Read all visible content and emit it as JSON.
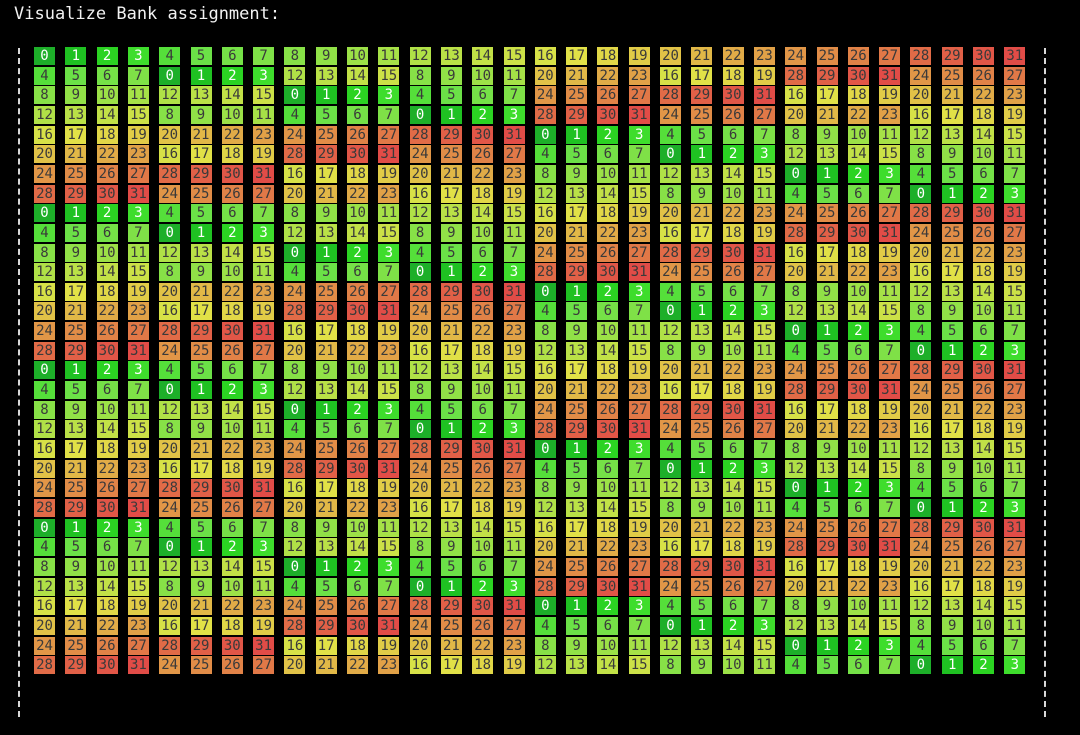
{
  "title": "Visualize Bank assignment:",
  "colors": {
    "background": "#000000",
    "title_text": "#f2f2f2",
    "cell_text": "#3a3a3a",
    "cell_text_low": "#ffffff",
    "border": "#d8d8d8"
  },
  "grid": {
    "rows": [
      [
        0,
        1,
        2,
        3,
        4,
        5,
        6,
        7,
        8,
        9,
        10,
        11,
        12,
        13,
        14,
        15,
        16,
        17,
        18,
        19,
        20,
        21,
        22,
        23,
        24,
        25,
        26,
        27,
        28,
        29,
        30,
        31
      ],
      [
        4,
        5,
        6,
        7,
        0,
        1,
        2,
        3,
        12,
        13,
        14,
        15,
        8,
        9,
        10,
        11,
        20,
        21,
        22,
        23,
        16,
        17,
        18,
        19,
        28,
        29,
        30,
        31,
        24,
        25,
        26,
        27
      ],
      [
        8,
        9,
        10,
        11,
        12,
        13,
        14,
        15,
        0,
        1,
        2,
        3,
        4,
        5,
        6,
        7,
        24,
        25,
        26,
        27,
        28,
        29,
        30,
        31,
        16,
        17,
        18,
        19,
        20,
        21,
        22,
        23
      ],
      [
        12,
        13,
        14,
        15,
        8,
        9,
        10,
        11,
        4,
        5,
        6,
        7,
        0,
        1,
        2,
        3,
        28,
        29,
        30,
        31,
        24,
        25,
        26,
        27,
        20,
        21,
        22,
        23,
        16,
        17,
        18,
        19
      ],
      [
        16,
        17,
        18,
        19,
        20,
        21,
        22,
        23,
        24,
        25,
        26,
        27,
        28,
        29,
        30,
        31,
        0,
        1,
        2,
        3,
        4,
        5,
        6,
        7,
        8,
        9,
        10,
        11,
        12,
        13,
        14,
        15
      ],
      [
        20,
        21,
        22,
        23,
        16,
        17,
        18,
        19,
        28,
        29,
        30,
        31,
        24,
        25,
        26,
        27,
        4,
        5,
        6,
        7,
        0,
        1,
        2,
        3,
        12,
        13,
        14,
        15,
        8,
        9,
        10,
        11
      ],
      [
        24,
        25,
        26,
        27,
        28,
        29,
        30,
        31,
        16,
        17,
        18,
        19,
        20,
        21,
        22,
        23,
        8,
        9,
        10,
        11,
        12,
        13,
        14,
        15,
        0,
        1,
        2,
        3,
        4,
        5,
        6,
        7
      ],
      [
        28,
        29,
        30,
        31,
        24,
        25,
        26,
        27,
        20,
        21,
        22,
        23,
        16,
        17,
        18,
        19,
        12,
        13,
        14,
        15,
        8,
        9,
        10,
        11,
        4,
        5,
        6,
        7,
        0,
        1,
        2,
        3
      ],
      [
        0,
        1,
        2,
        3,
        4,
        5,
        6,
        7,
        8,
        9,
        10,
        11,
        12,
        13,
        14,
        15,
        16,
        17,
        18,
        19,
        20,
        21,
        22,
        23,
        24,
        25,
        26,
        27,
        28,
        29,
        30,
        31
      ],
      [
        4,
        5,
        6,
        7,
        0,
        1,
        2,
        3,
        12,
        13,
        14,
        15,
        8,
        9,
        10,
        11,
        20,
        21,
        22,
        23,
        16,
        17,
        18,
        19,
        28,
        29,
        30,
        31,
        24,
        25,
        26,
        27
      ],
      [
        8,
        9,
        10,
        11,
        12,
        13,
        14,
        15,
        0,
        1,
        2,
        3,
        4,
        5,
        6,
        7,
        24,
        25,
        26,
        27,
        28,
        29,
        30,
        31,
        16,
        17,
        18,
        19,
        20,
        21,
        22,
        23
      ],
      [
        12,
        13,
        14,
        15,
        8,
        9,
        10,
        11,
        4,
        5,
        6,
        7,
        0,
        1,
        2,
        3,
        28,
        29,
        30,
        31,
        24,
        25,
        26,
        27,
        20,
        21,
        22,
        23,
        16,
        17,
        18,
        19
      ],
      [
        16,
        17,
        18,
        19,
        20,
        21,
        22,
        23,
        24,
        25,
        26,
        27,
        28,
        29,
        30,
        31,
        0,
        1,
        2,
        3,
        4,
        5,
        6,
        7,
        8,
        9,
        10,
        11,
        12,
        13,
        14,
        15
      ],
      [
        20,
        21,
        22,
        23,
        16,
        17,
        18,
        19,
        28,
        29,
        30,
        31,
        24,
        25,
        26,
        27,
        4,
        5,
        6,
        7,
        0,
        1,
        2,
        3,
        12,
        13,
        14,
        15,
        8,
        9,
        10,
        11
      ],
      [
        24,
        25,
        26,
        27,
        28,
        29,
        30,
        31,
        16,
        17,
        18,
        19,
        20,
        21,
        22,
        23,
        8,
        9,
        10,
        11,
        12,
        13,
        14,
        15,
        0,
        1,
        2,
        3,
        4,
        5,
        6,
        7
      ],
      [
        28,
        29,
        30,
        31,
        24,
        25,
        26,
        27,
        20,
        21,
        22,
        23,
        16,
        17,
        18,
        19,
        12,
        13,
        14,
        15,
        8,
        9,
        10,
        11,
        4,
        5,
        6,
        7,
        0,
        1,
        2,
        3
      ],
      [
        0,
        1,
        2,
        3,
        4,
        5,
        6,
        7,
        8,
        9,
        10,
        11,
        12,
        13,
        14,
        15,
        16,
        17,
        18,
        19,
        20,
        21,
        22,
        23,
        24,
        25,
        26,
        27,
        28,
        29,
        30,
        31
      ],
      [
        4,
        5,
        6,
        7,
        0,
        1,
        2,
        3,
        12,
        13,
        14,
        15,
        8,
        9,
        10,
        11,
        20,
        21,
        22,
        23,
        16,
        17,
        18,
        19,
        28,
        29,
        30,
        31,
        24,
        25,
        26,
        27
      ],
      [
        8,
        9,
        10,
        11,
        12,
        13,
        14,
        15,
        0,
        1,
        2,
        3,
        4,
        5,
        6,
        7,
        24,
        25,
        26,
        27,
        28,
        29,
        30,
        31,
        16,
        17,
        18,
        19,
        20,
        21,
        22,
        23
      ],
      [
        12,
        13,
        14,
        15,
        8,
        9,
        10,
        11,
        4,
        5,
        6,
        7,
        0,
        1,
        2,
        3,
        28,
        29,
        30,
        31,
        24,
        25,
        26,
        27,
        20,
        21,
        22,
        23,
        16,
        17,
        18,
        19
      ],
      [
        16,
        17,
        18,
        19,
        20,
        21,
        22,
        23,
        24,
        25,
        26,
        27,
        28,
        29,
        30,
        31,
        0,
        1,
        2,
        3,
        4,
        5,
        6,
        7,
        8,
        9,
        10,
        11,
        12,
        13,
        14,
        15
      ],
      [
        20,
        21,
        22,
        23,
        16,
        17,
        18,
        19,
        28,
        29,
        30,
        31,
        24,
        25,
        26,
        27,
        4,
        5,
        6,
        7,
        0,
        1,
        2,
        3,
        12,
        13,
        14,
        15,
        8,
        9,
        10,
        11
      ],
      [
        24,
        25,
        26,
        27,
        28,
        29,
        30,
        31,
        16,
        17,
        18,
        19,
        20,
        21,
        22,
        23,
        8,
        9,
        10,
        11,
        12,
        13,
        14,
        15,
        0,
        1,
        2,
        3,
        4,
        5,
        6,
        7
      ],
      [
        28,
        29,
        30,
        31,
        24,
        25,
        26,
        27,
        20,
        21,
        22,
        23,
        16,
        17,
        18,
        19,
        12,
        13,
        14,
        15,
        8,
        9,
        10,
        11,
        4,
        5,
        6,
        7,
        0,
        1,
        2,
        3
      ],
      [
        0,
        1,
        2,
        3,
        4,
        5,
        6,
        7,
        8,
        9,
        10,
        11,
        12,
        13,
        14,
        15,
        16,
        17,
        18,
        19,
        20,
        21,
        22,
        23,
        24,
        25,
        26,
        27,
        28,
        29,
        30,
        31
      ],
      [
        4,
        5,
        6,
        7,
        0,
        1,
        2,
        3,
        12,
        13,
        14,
        15,
        8,
        9,
        10,
        11,
        20,
        21,
        22,
        23,
        16,
        17,
        18,
        19,
        28,
        29,
        30,
        31,
        24,
        25,
        26,
        27
      ],
      [
        8,
        9,
        10,
        11,
        12,
        13,
        14,
        15,
        0,
        1,
        2,
        3,
        4,
        5,
        6,
        7,
        24,
        25,
        26,
        27,
        28,
        29,
        30,
        31,
        16,
        17,
        18,
        19,
        20,
        21,
        22,
        23
      ],
      [
        12,
        13,
        14,
        15,
        8,
        9,
        10,
        11,
        4,
        5,
        6,
        7,
        0,
        1,
        2,
        3,
        28,
        29,
        30,
        31,
        24,
        25,
        26,
        27,
        20,
        21,
        22,
        23,
        16,
        17,
        18,
        19
      ],
      [
        16,
        17,
        18,
        19,
        20,
        21,
        22,
        23,
        24,
        25,
        26,
        27,
        28,
        29,
        30,
        31,
        0,
        1,
        2,
        3,
        4,
        5,
        6,
        7,
        8,
        9,
        10,
        11,
        12,
        13,
        14,
        15
      ],
      [
        20,
        21,
        22,
        23,
        16,
        17,
        18,
        19,
        28,
        29,
        30,
        31,
        24,
        25,
        26,
        27,
        4,
        5,
        6,
        7,
        0,
        1,
        2,
        3,
        12,
        13,
        14,
        15,
        8,
        9,
        10,
        11
      ],
      [
        24,
        25,
        26,
        27,
        28,
        29,
        30,
        31,
        16,
        17,
        18,
        19,
        20,
        21,
        22,
        23,
        8,
        9,
        10,
        11,
        12,
        13,
        14,
        15,
        0,
        1,
        2,
        3,
        4,
        5,
        6,
        7
      ],
      [
        28,
        29,
        30,
        31,
        24,
        25,
        26,
        27,
        20,
        21,
        22,
        23,
        16,
        17,
        18,
        19,
        12,
        13,
        14,
        15,
        8,
        9,
        10,
        11,
        4,
        5,
        6,
        7,
        0,
        1,
        2,
        3
      ]
    ]
  }
}
